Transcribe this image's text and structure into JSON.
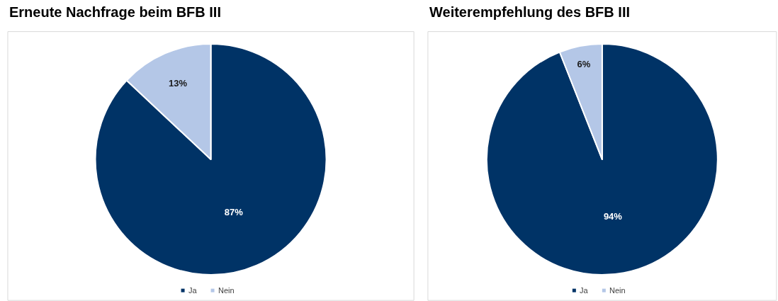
{
  "chart_data": [
    {
      "type": "pie",
      "title": "Erneute Nachfrage beim BFB III",
      "categories": [
        "Ja",
        "Nein"
      ],
      "values": [
        87,
        13
      ],
      "colors": [
        "#003366",
        "#b4c7e7"
      ],
      "value_labels": [
        "87%",
        "13%"
      ],
      "legend": "bottom"
    },
    {
      "type": "pie",
      "title": "Weiterempfehlung des BFB III",
      "categories": [
        "Ja",
        "Nein"
      ],
      "values": [
        94,
        6
      ],
      "colors": [
        "#003366",
        "#b4c7e7"
      ],
      "value_labels": [
        "94%",
        "6%"
      ],
      "legend": "bottom"
    }
  ]
}
